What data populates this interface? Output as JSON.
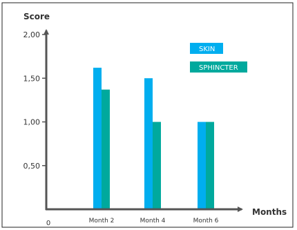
{
  "chart_data": {
    "type": "bar",
    "title": "",
    "ylabel": "Score",
    "xlabel": "Months",
    "origin_label": "0",
    "categories": [
      "Month 2",
      "Month 4",
      "Month 6"
    ],
    "series": [
      {
        "name": "SKIN",
        "values": [
          1.62,
          1.5,
          1.0
        ],
        "color": "#00AEEF"
      },
      {
        "name": "SPHINCTER",
        "values": [
          1.37,
          1.0,
          1.0
        ],
        "color": "#00A99D"
      }
    ],
    "ylim": [
      0,
      2.0
    ],
    "yticks": [
      0.5,
      1.0,
      1.5,
      2.0
    ],
    "ytick_labels": [
      "0,50",
      "1,00",
      "1,50",
      "2,00"
    ],
    "grid": false,
    "legend_position": "top-right",
    "colors": {
      "axis": "#555555",
      "frame": "#222222",
      "text": "#333333",
      "legend_text": "#ffffff"
    }
  }
}
